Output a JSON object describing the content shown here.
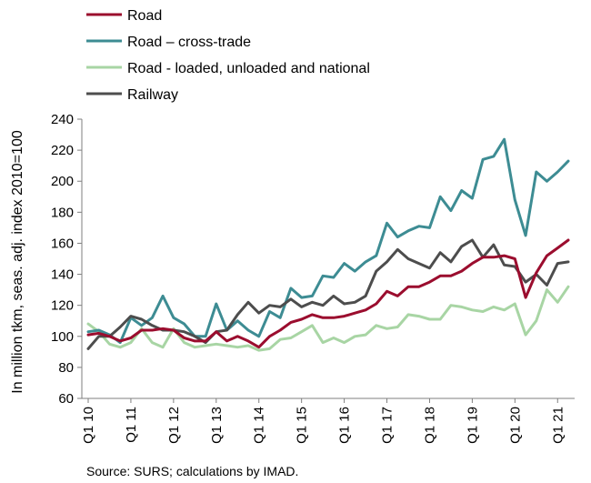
{
  "chart_data": {
    "type": "line",
    "ylabel": "In million tkm, seas. adj. index 2010=100",
    "ylim": [
      60,
      240
    ],
    "yticks": [
      60,
      80,
      100,
      120,
      140,
      160,
      180,
      200,
      220,
      240
    ],
    "grid": false,
    "legend_position": "top-left",
    "x": [
      "Q1 10",
      "Q2 10",
      "Q3 10",
      "Q4 10",
      "Q1 11",
      "Q2 11",
      "Q3 11",
      "Q4 11",
      "Q1 12",
      "Q2 12",
      "Q3 12",
      "Q4 12",
      "Q1 13",
      "Q2 13",
      "Q3 13",
      "Q4 13",
      "Q1 14",
      "Q2 14",
      "Q3 14",
      "Q4 14",
      "Q1 15",
      "Q2 15",
      "Q3 15",
      "Q4 15",
      "Q1 16",
      "Q2 16",
      "Q3 16",
      "Q4 16",
      "Q1 17",
      "Q2 17",
      "Q3 17",
      "Q4 17",
      "Q1 18",
      "Q2 18",
      "Q3 18",
      "Q4 18",
      "Q1 19",
      "Q2 19",
      "Q3 19",
      "Q4 19",
      "Q1 20",
      "Q2 20",
      "Q3 20",
      "Q4 20",
      "Q1 21",
      "Q2 21"
    ],
    "xtick_labels": [
      "Q1 10",
      "Q1 11",
      "Q1 12",
      "Q1 13",
      "Q1 14",
      "Q1 15",
      "Q1 16",
      "Q1 17",
      "Q1 18",
      "Q1 19",
      "Q1 20",
      "Q1 21"
    ],
    "series": [
      {
        "name": "Road",
        "color": "#9b0d2e",
        "values": [
          101,
          102,
          100,
          97,
          99,
          104,
          104,
          105,
          104,
          99,
          97,
          97,
          103,
          97,
          100,
          97,
          93,
          100,
          104,
          109,
          111,
          114,
          112,
          112,
          113,
          115,
          117,
          121,
          129,
          126,
          132,
          132,
          135,
          139,
          139,
          142,
          147,
          151,
          151,
          152,
          150,
          125,
          141,
          152,
          157,
          162
        ]
      },
      {
        "name": "Road – cross-trade",
        "color": "#3d8c93",
        "values": [
          103,
          104,
          101,
          96,
          112,
          107,
          112,
          126,
          112,
          108,
          100,
          100,
          121,
          104,
          110,
          104,
          100,
          116,
          112,
          131,
          125,
          126,
          139,
          138,
          147,
          142,
          148,
          152,
          173,
          164,
          168,
          171,
          170,
          190,
          181,
          194,
          189,
          214,
          216,
          227,
          188,
          165,
          206,
          200,
          206,
          213
        ]
      },
      {
        "name": "Road - loaded, unloaded and national",
        "color": "#a8d5a4",
        "values": [
          108,
          103,
          95,
          93,
          96,
          105,
          96,
          93,
          105,
          96,
          93,
          94,
          95,
          94,
          93,
          94,
          91,
          92,
          98,
          99,
          103,
          107,
          96,
          99,
          96,
          100,
          101,
          107,
          105,
          106,
          114,
          113,
          111,
          111,
          120,
          119,
          117,
          116,
          119,
          117,
          121,
          101,
          110,
          130,
          122,
          132
        ]
      },
      {
        "name": "Railway",
        "color": "#4d4d4d",
        "values": [
          92,
          100,
          100,
          106,
          113,
          111,
          107,
          104,
          104,
          103,
          100,
          96,
          103,
          104,
          114,
          122,
          115,
          120,
          119,
          124,
          119,
          122,
          120,
          126,
          121,
          122,
          126,
          142,
          148,
          156,
          150,
          147,
          144,
          154,
          148,
          158,
          162,
          151,
          159,
          146,
          145,
          135,
          140,
          133,
          147,
          148
        ]
      }
    ],
    "source": "Source: SURS; calculations by IMAD."
  }
}
